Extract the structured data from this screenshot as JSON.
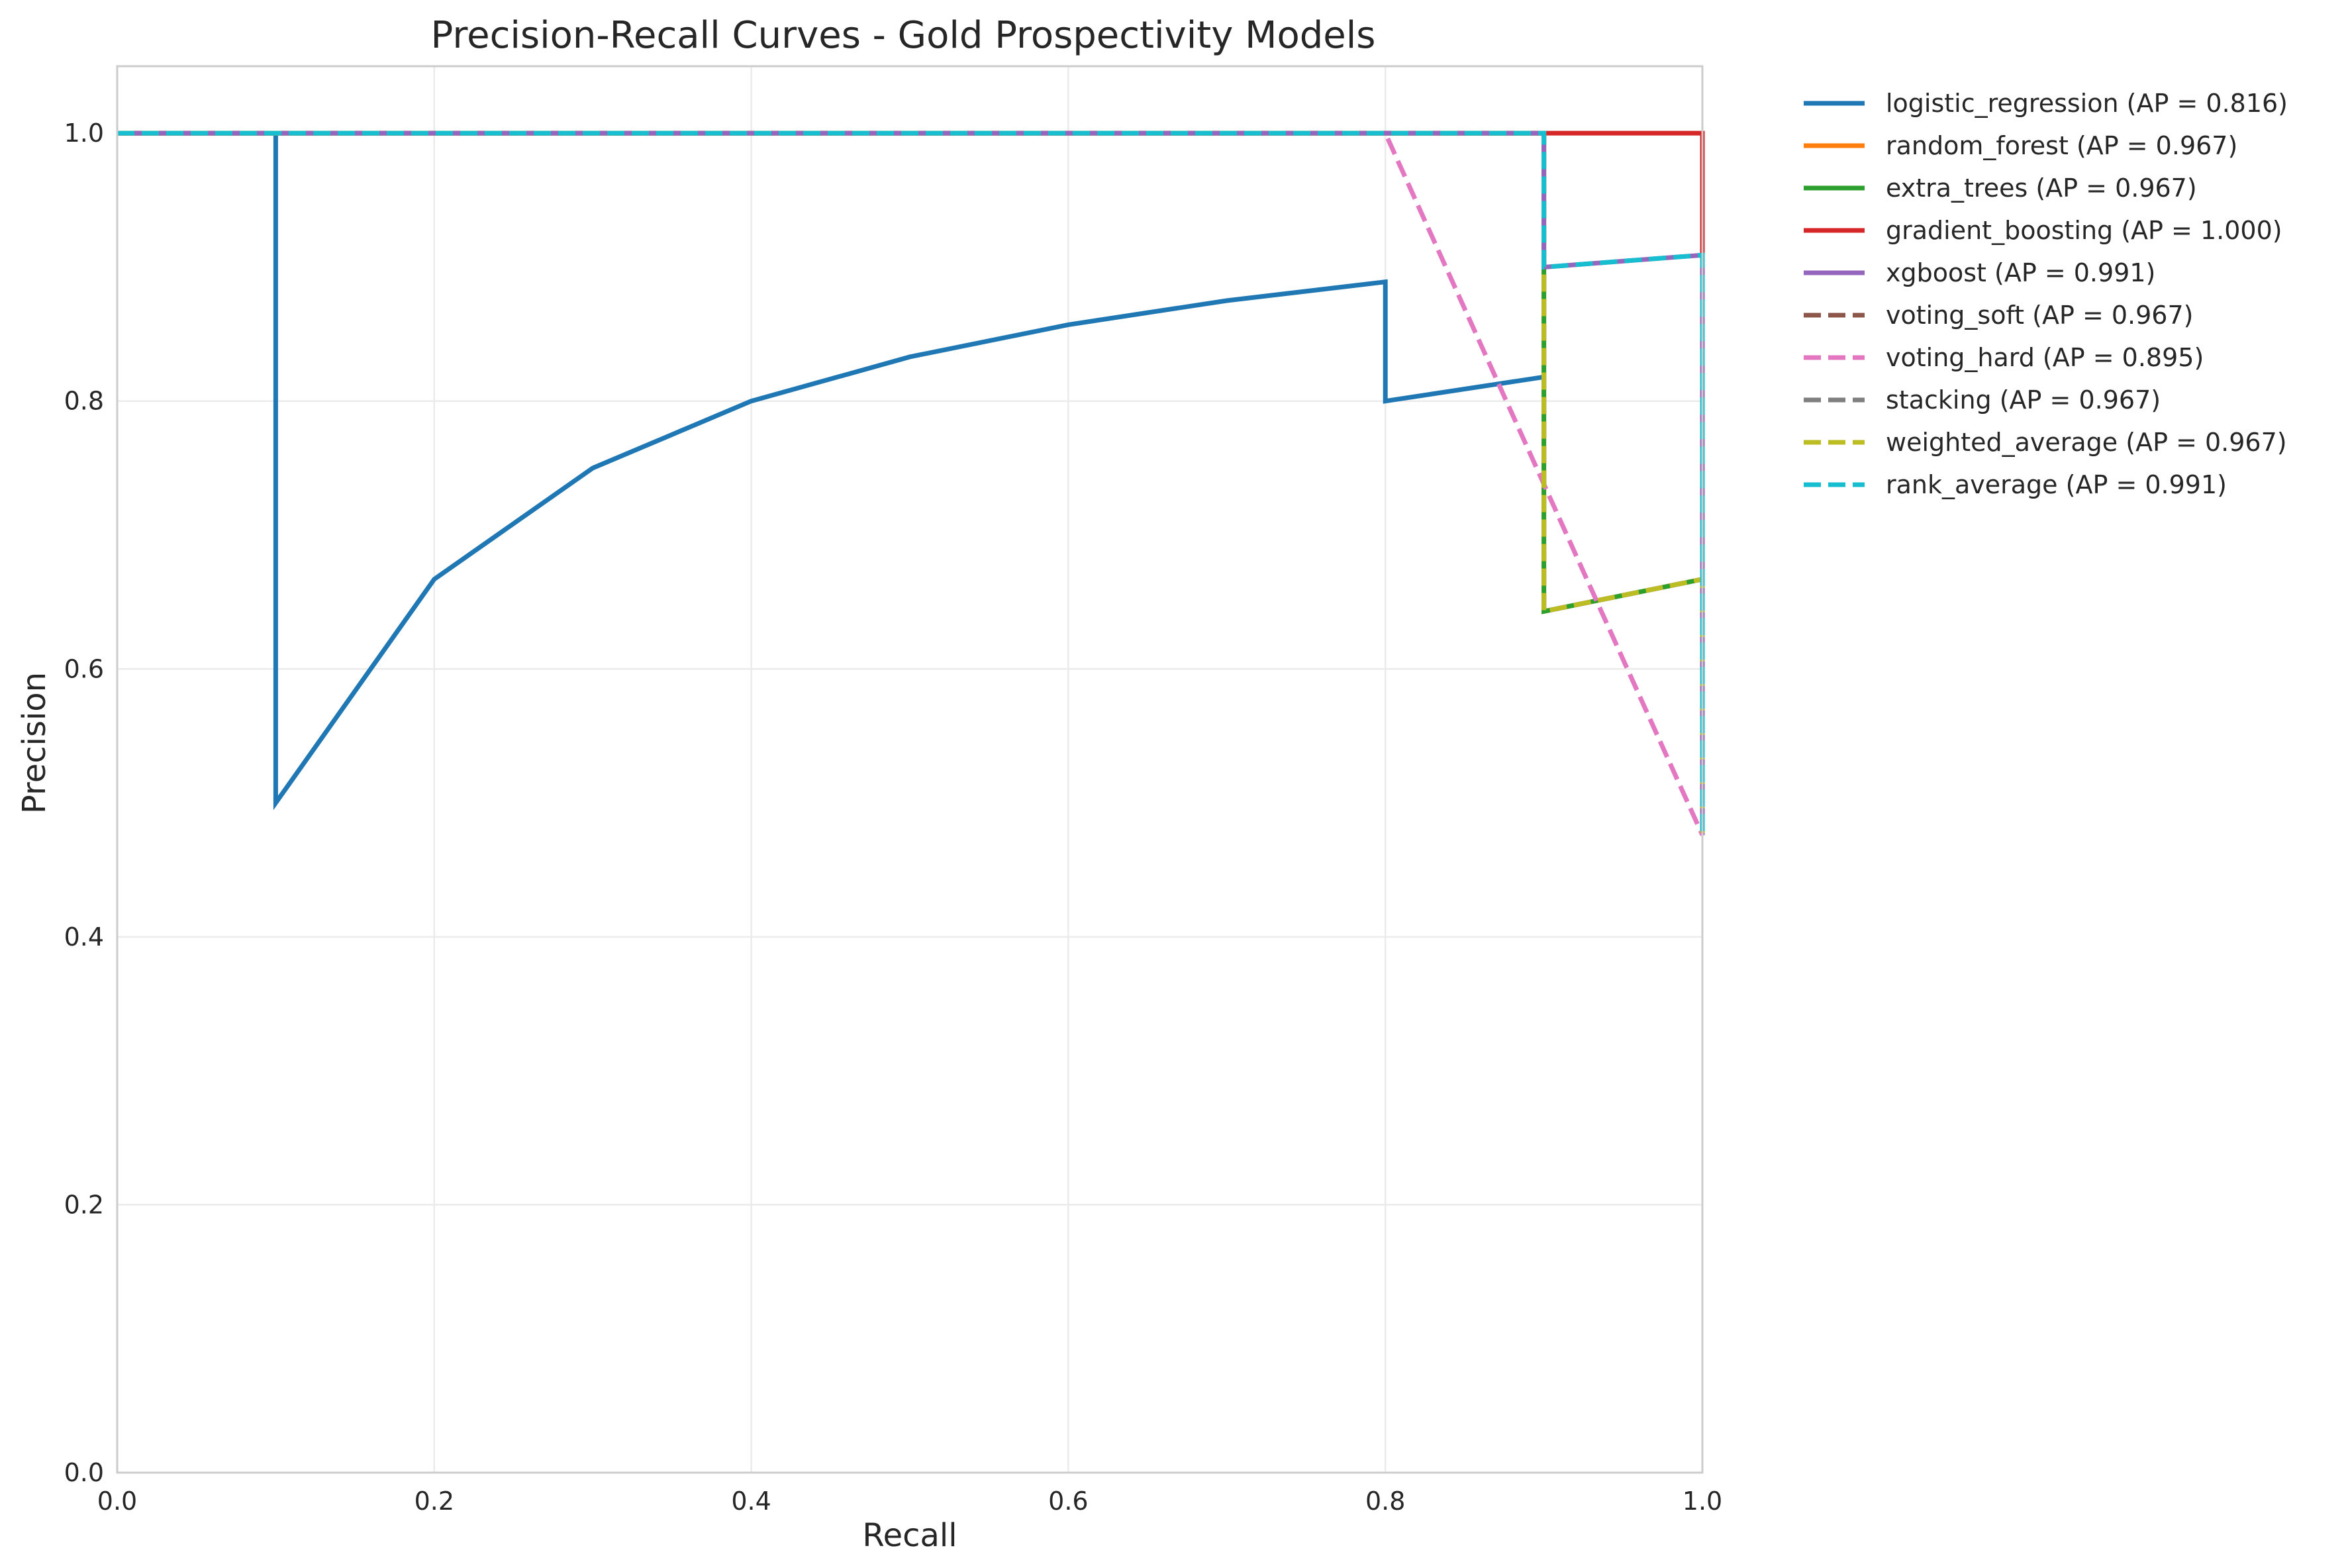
{
  "chart_data": {
    "type": "line",
    "title": "Precision-Recall Curves - Gold Prospectivity Models",
    "xlabel": "Recall",
    "ylabel": "Precision",
    "xlim": [
      0.0,
      1.0
    ],
    "ylim": [
      0.0,
      1.05
    ],
    "xticks": [
      0.0,
      0.2,
      0.4,
      0.6,
      0.8,
      1.0
    ],
    "yticks": [
      0.0,
      0.2,
      0.4,
      0.6,
      0.8,
      1.0
    ],
    "xtick_labels": [
      "0.0",
      "0.2",
      "0.4",
      "0.6",
      "0.8",
      "1.0"
    ],
    "ytick_labels": [
      "0.0",
      "0.2",
      "0.4",
      "0.6",
      "0.8",
      "1.0"
    ],
    "grid": true,
    "legend_position": "outside-right-top",
    "series": [
      {
        "name": "logistic_regression (AP = 0.816)",
        "color": "#1f77b4",
        "dashed": false,
        "x": [
          0.0,
          0.1,
          0.1,
          0.2,
          0.3,
          0.4,
          0.5,
          0.6,
          0.7,
          0.8,
          0.8,
          0.9
        ],
        "y": [
          1.0,
          1.0,
          0.5,
          0.667,
          0.75,
          0.8,
          0.833,
          0.857,
          0.875,
          0.889,
          0.8,
          0.818
        ]
      },
      {
        "name": "random_forest (AP = 0.967)",
        "color": "#ff7f0e",
        "dashed": false,
        "x": [
          0.0,
          0.9,
          0.9,
          1.0,
          1.0
        ],
        "y": [
          1.0,
          1.0,
          0.643,
          0.667,
          0.476
        ]
      },
      {
        "name": "extra_trees (AP = 0.967)",
        "color": "#2ca02c",
        "dashed": false,
        "x": [
          0.0,
          0.9,
          0.9,
          1.0,
          1.0
        ],
        "y": [
          1.0,
          1.0,
          0.643,
          0.667,
          0.476
        ]
      },
      {
        "name": "gradient_boosting (AP = 1.000)",
        "color": "#d62728",
        "dashed": false,
        "x": [
          0.0,
          1.0,
          1.0
        ],
        "y": [
          1.0,
          1.0,
          0.909
        ]
      },
      {
        "name": "xgboost (AP = 0.991)",
        "color": "#9467bd",
        "dashed": false,
        "x": [
          0.0,
          0.9,
          0.9,
          1.0,
          1.0
        ],
        "y": [
          1.0,
          1.0,
          0.9,
          0.909,
          0.476
        ]
      },
      {
        "name": "voting_soft (AP = 0.967)",
        "color": "#8c564b",
        "dashed": true,
        "x": [
          0.0,
          0.9,
          0.9,
          1.0,
          1.0
        ],
        "y": [
          1.0,
          1.0,
          0.643,
          0.667,
          0.476
        ]
      },
      {
        "name": "voting_hard (AP = 0.895)",
        "color": "#e377c2",
        "dashed": true,
        "x": [
          0.0,
          0.8,
          1.0
        ],
        "y": [
          1.0,
          1.0,
          0.476
        ]
      },
      {
        "name": "stacking (AP = 0.967)",
        "color": "#7f7f7f",
        "dashed": true,
        "x": [
          0.0,
          0.9,
          0.9,
          1.0,
          1.0
        ],
        "y": [
          1.0,
          1.0,
          0.643,
          0.667,
          0.476
        ]
      },
      {
        "name": "weighted_average (AP = 0.967)",
        "color": "#bcbd22",
        "dashed": true,
        "x": [
          0.0,
          0.9,
          0.9,
          1.0,
          1.0
        ],
        "y": [
          1.0,
          1.0,
          0.643,
          0.667,
          0.476
        ]
      },
      {
        "name": "rank_average (AP = 0.991)",
        "color": "#17becf",
        "dashed": true,
        "x": [
          0.0,
          0.9,
          0.9,
          1.0,
          1.0
        ],
        "y": [
          1.0,
          1.0,
          0.9,
          0.909,
          0.476
        ]
      }
    ]
  }
}
